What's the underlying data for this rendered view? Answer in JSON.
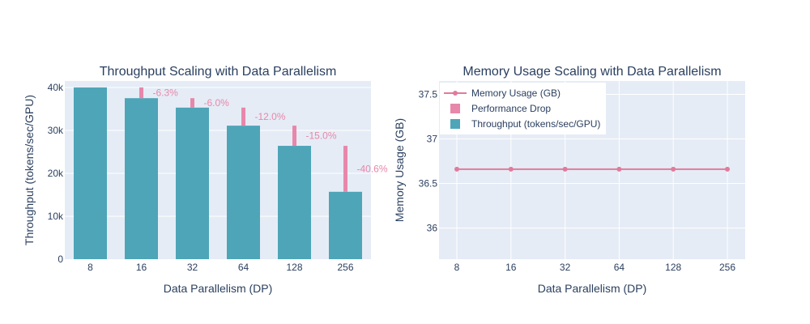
{
  "colors": {
    "throughput": "#4ea5b8",
    "drop": "#e887aa",
    "memory": "#e07b9c",
    "plot_bg": "#e5ecf6",
    "grid": "#cfd6e2",
    "text": "#2a3f5f"
  },
  "chart_data": [
    {
      "type": "bar",
      "title": "Throughput Scaling with Data Parallelism",
      "xlabel": "Data Parallelism (DP)",
      "ylabel": "Throughput (tokens/sec/GPU)",
      "categories": [
        "8",
        "16",
        "32",
        "64",
        "128",
        "256"
      ],
      "ylim": [
        0,
        41500
      ],
      "yticks": [
        0,
        10000,
        20000,
        30000,
        40000
      ],
      "ytick_labels": [
        "0",
        "10k",
        "20k",
        "30k",
        "40k"
      ],
      "grid": true,
      "series": [
        {
          "name": "Throughput (tokens/sec/GPU)",
          "values": [
            40000,
            37500,
            35300,
            31100,
            26400,
            15700
          ]
        },
        {
          "name": "Performance Drop",
          "base": [
            37500,
            35300,
            31100,
            26400,
            15700
          ],
          "top": [
            40000,
            37500,
            35300,
            31100,
            26400
          ],
          "labels": [
            "-6.3%",
            "-6.0%",
            "-12.0%",
            "-15.0%",
            "-40.6%"
          ]
        }
      ]
    },
    {
      "type": "line",
      "title": "Memory Usage Scaling with Data Parallelism",
      "xlabel": "Data Parallelism (DP)",
      "ylabel": "Memory Usage (GB)",
      "categories": [
        "8",
        "16",
        "32",
        "64",
        "128",
        "256"
      ],
      "ylim": [
        35.65,
        37.65
      ],
      "yticks": [
        36,
        36.5,
        37,
        37.5
      ],
      "ytick_labels": [
        "36",
        "36.5",
        "37",
        "37.5"
      ],
      "grid": true,
      "series": [
        {
          "name": "Memory Usage (GB)",
          "values": [
            36.66,
            36.66,
            36.66,
            36.66,
            36.66,
            36.66
          ]
        }
      ]
    }
  ],
  "legend": {
    "placement": "top-left of right chart",
    "items": [
      {
        "label": "Memory Usage (GB)",
        "symbol": "line-marker"
      },
      {
        "label": "Performance Drop",
        "symbol": "square-drop"
      },
      {
        "label": "Throughput (tokens/sec/GPU)",
        "symbol": "square-throughput"
      }
    ]
  }
}
